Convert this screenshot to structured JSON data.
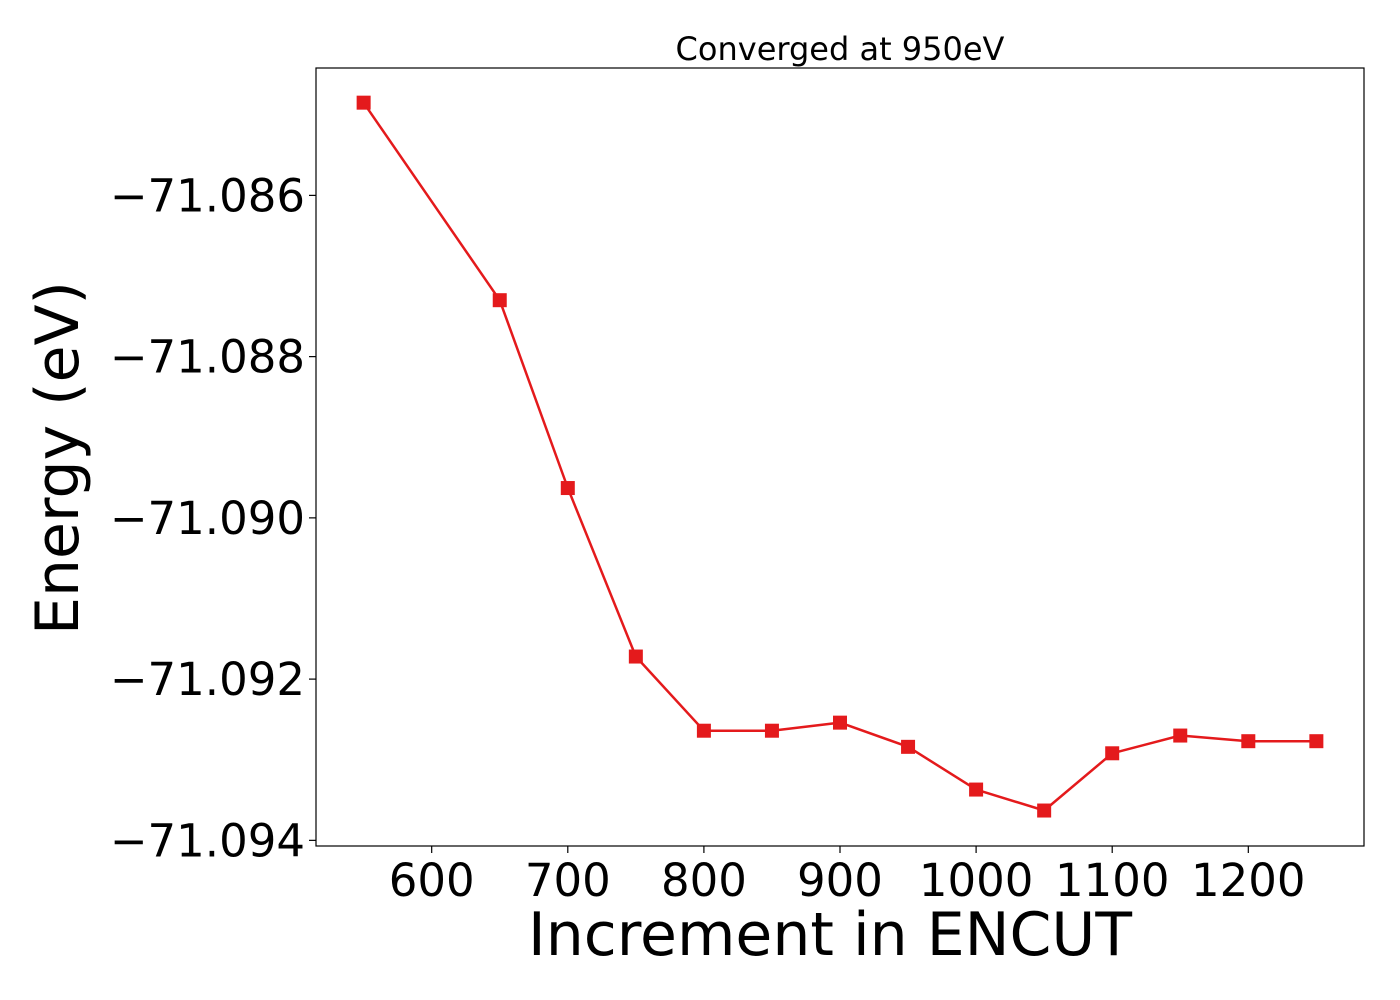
{
  "chart_data": {
    "type": "line",
    "title": "Converged at 950eV",
    "xlabel": "Increment in ENCUT",
    "ylabel": "Energy (eV)",
    "x": [
      550,
      650,
      700,
      750,
      800,
      850,
      900,
      950,
      1000,
      1050,
      1100,
      1150,
      1200,
      1250
    ],
    "series": [
      {
        "values": [
          -71.08485,
          -71.0873,
          -71.08963,
          -71.09172,
          -71.09264,
          -71.09264,
          -71.09254,
          -71.09284,
          -71.09337,
          -71.09363,
          -71.09292,
          -71.0927,
          -71.09277,
          -71.09277
        ],
        "color": "#e41a1c",
        "marker": "square"
      }
    ],
    "xlim": [
      515,
      1285
    ],
    "ylim": [
      -71.09407,
      -71.08442
    ],
    "xticks": [
      600,
      700,
      800,
      900,
      1000,
      1100,
      1200
    ],
    "xtick_labels": [
      "600",
      "700",
      "800",
      "900",
      "1000",
      "1100",
      "1200"
    ],
    "yticks": [
      -71.086,
      -71.088,
      -71.09,
      -71.092,
      -71.094
    ],
    "ytick_labels": [
      "−71.086",
      "−71.088",
      "−71.090",
      "−71.092",
      "−71.094"
    ],
    "grid": false,
    "legend": "none"
  }
}
